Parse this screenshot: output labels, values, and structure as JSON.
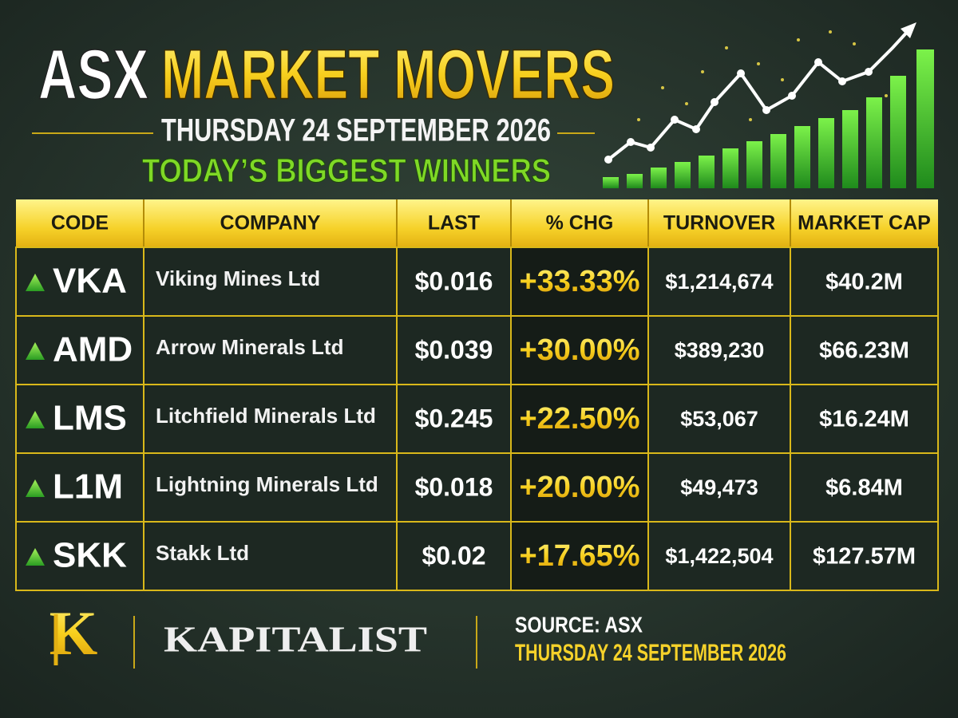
{
  "header": {
    "title_part1": "ASX",
    "title_part2": "MARKET MOVERS",
    "date": "THURSDAY 24 SEPTEMBER 2026",
    "subtitle": "TODAY’S BIGGEST WINNERS"
  },
  "table": {
    "columns": [
      "CODE",
      "COMPANY",
      "LAST",
      "% CHG",
      "TURNOVER",
      "MARKET CAP"
    ],
    "rows": [
      [
        "VKA",
        "Viking Mines Ltd",
        "$0.016",
        "+33.33%",
        "$1,214,674",
        "$40.2M"
      ],
      [
        "AMD",
        "Arrow Minerals Ltd",
        "$0.039",
        "+30.00%",
        "$389,230",
        "$66.23M"
      ],
      [
        "LMS",
        "Litchfield Minerals Ltd",
        "$0.245",
        "+22.50%",
        "$53,067",
        "$16.24M"
      ],
      [
        "L1M",
        "Lightning Minerals Ltd",
        "$0.018",
        "+20.00%",
        "$49,473",
        "$6.84M"
      ],
      [
        "SKK",
        "Stakk Ltd",
        "$0.02",
        "+17.65%",
        "$1,422,504",
        "$127.57M"
      ]
    ]
  },
  "footer": {
    "logo": "K",
    "brand": "KAPITALIST",
    "source": "SOURCE: ASX",
    "date": "THURSDAY 24 SEPTEMBER 2026"
  }
}
